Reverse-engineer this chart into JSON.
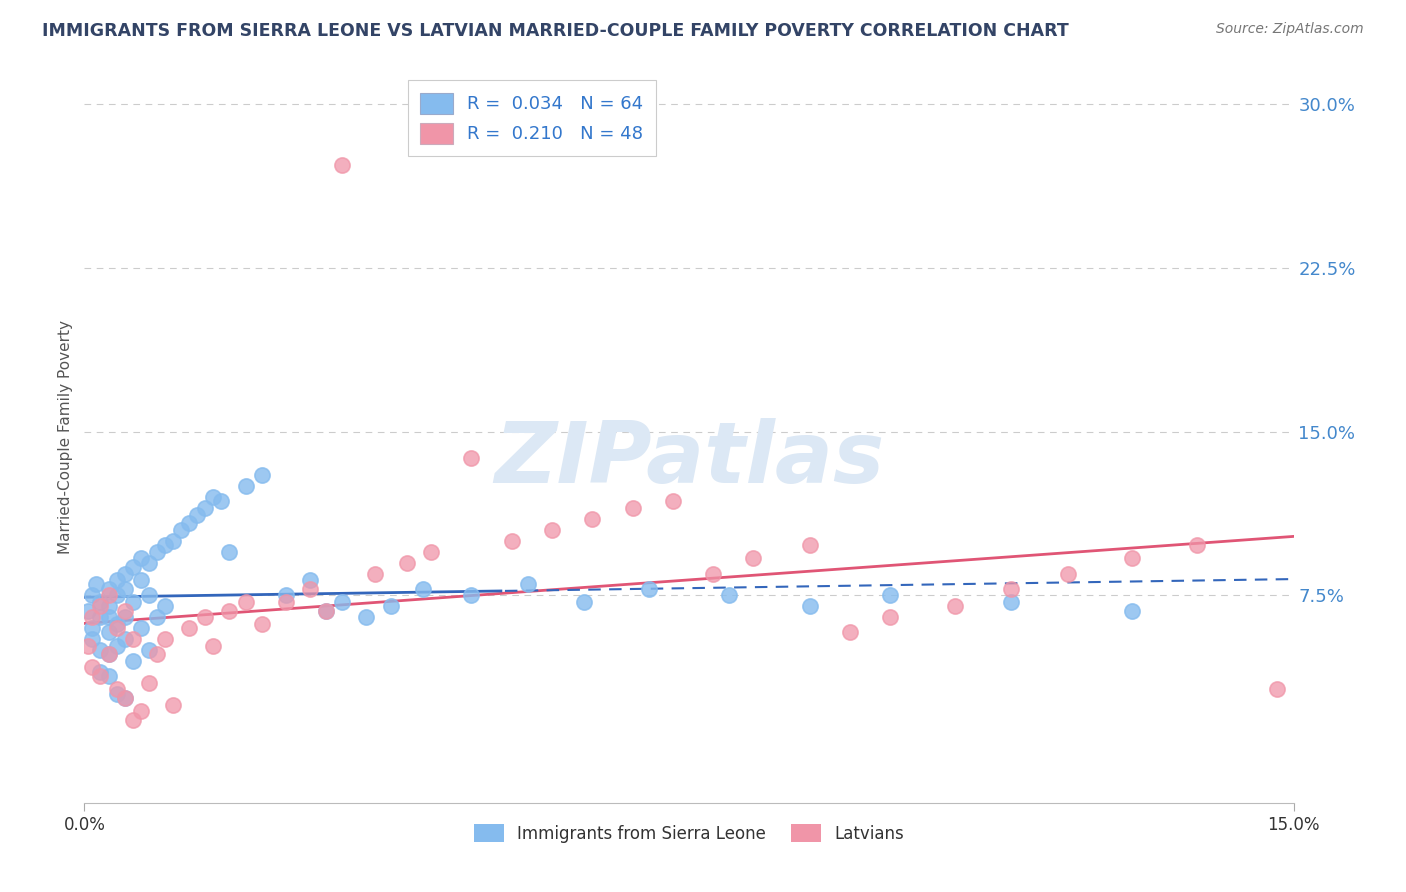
{
  "title": "IMMIGRANTS FROM SIERRA LEONE VS LATVIAN MARRIED-COUPLE FAMILY POVERTY CORRELATION CHART",
  "source": "Source: ZipAtlas.com",
  "ylabel": "Married-Couple Family Poverty",
  "x_min": 0.0,
  "x_max": 0.15,
  "y_min": -0.02,
  "y_max": 0.315,
  "y_ticks": [
    0.075,
    0.15,
    0.225,
    0.3
  ],
  "y_tick_labels": [
    "7.5%",
    "15.0%",
    "22.5%",
    "30.0%"
  ],
  "series1_name": "Immigrants from Sierra Leone",
  "series1_color": "#85bbee",
  "series1_R": 0.034,
  "series1_N": 64,
  "series2_name": "Latvians",
  "series2_color": "#f095a8",
  "series2_R": 0.21,
  "series2_N": 48,
  "trend_line1_color": "#3366bb",
  "trend_line2_color": "#e05575",
  "watermark_color": "#dce8f5",
  "background_color": "#ffffff",
  "grid_color": "#cccccc",
  "s1_x": [
    0.0005,
    0.001,
    0.001,
    0.001,
    0.0015,
    0.002,
    0.002,
    0.002,
    0.002,
    0.003,
    0.003,
    0.003,
    0.003,
    0.003,
    0.003,
    0.004,
    0.004,
    0.004,
    0.004,
    0.004,
    0.005,
    0.005,
    0.005,
    0.005,
    0.005,
    0.006,
    0.006,
    0.006,
    0.007,
    0.007,
    0.007,
    0.008,
    0.008,
    0.008,
    0.009,
    0.009,
    0.01,
    0.01,
    0.011,
    0.012,
    0.013,
    0.014,
    0.015,
    0.016,
    0.017,
    0.018,
    0.02,
    0.022,
    0.025,
    0.028,
    0.03,
    0.032,
    0.035,
    0.038,
    0.042,
    0.048,
    0.055,
    0.062,
    0.07,
    0.08,
    0.09,
    0.1,
    0.115,
    0.13
  ],
  "s1_y": [
    0.068,
    0.075,
    0.06,
    0.055,
    0.08,
    0.072,
    0.065,
    0.05,
    0.04,
    0.078,
    0.07,
    0.065,
    0.058,
    0.048,
    0.038,
    0.082,
    0.075,
    0.062,
    0.052,
    0.03,
    0.085,
    0.078,
    0.065,
    0.055,
    0.028,
    0.088,
    0.072,
    0.045,
    0.092,
    0.082,
    0.06,
    0.09,
    0.075,
    0.05,
    0.095,
    0.065,
    0.098,
    0.07,
    0.1,
    0.105,
    0.108,
    0.112,
    0.115,
    0.12,
    0.118,
    0.095,
    0.125,
    0.13,
    0.075,
    0.082,
    0.068,
    0.072,
    0.065,
    0.07,
    0.078,
    0.075,
    0.08,
    0.072,
    0.078,
    0.075,
    0.07,
    0.075,
    0.072,
    0.068
  ],
  "s2_x": [
    0.0005,
    0.001,
    0.001,
    0.002,
    0.002,
    0.003,
    0.003,
    0.004,
    0.004,
    0.005,
    0.005,
    0.006,
    0.006,
    0.007,
    0.008,
    0.009,
    0.01,
    0.011,
    0.013,
    0.015,
    0.016,
    0.018,
    0.02,
    0.022,
    0.025,
    0.028,
    0.03,
    0.032,
    0.036,
    0.04,
    0.043,
    0.048,
    0.053,
    0.058,
    0.063,
    0.068,
    0.073,
    0.078,
    0.083,
    0.09,
    0.095,
    0.1,
    0.108,
    0.115,
    0.122,
    0.13,
    0.138,
    0.148
  ],
  "s2_y": [
    0.052,
    0.065,
    0.042,
    0.07,
    0.038,
    0.075,
    0.048,
    0.06,
    0.032,
    0.068,
    0.028,
    0.055,
    0.018,
    0.022,
    0.035,
    0.048,
    0.055,
    0.025,
    0.06,
    0.065,
    0.052,
    0.068,
    0.072,
    0.062,
    0.072,
    0.078,
    0.068,
    0.272,
    0.085,
    0.09,
    0.095,
    0.138,
    0.1,
    0.105,
    0.11,
    0.115,
    0.118,
    0.085,
    0.092,
    0.098,
    0.058,
    0.065,
    0.07,
    0.078,
    0.085,
    0.092,
    0.098,
    0.032
  ]
}
